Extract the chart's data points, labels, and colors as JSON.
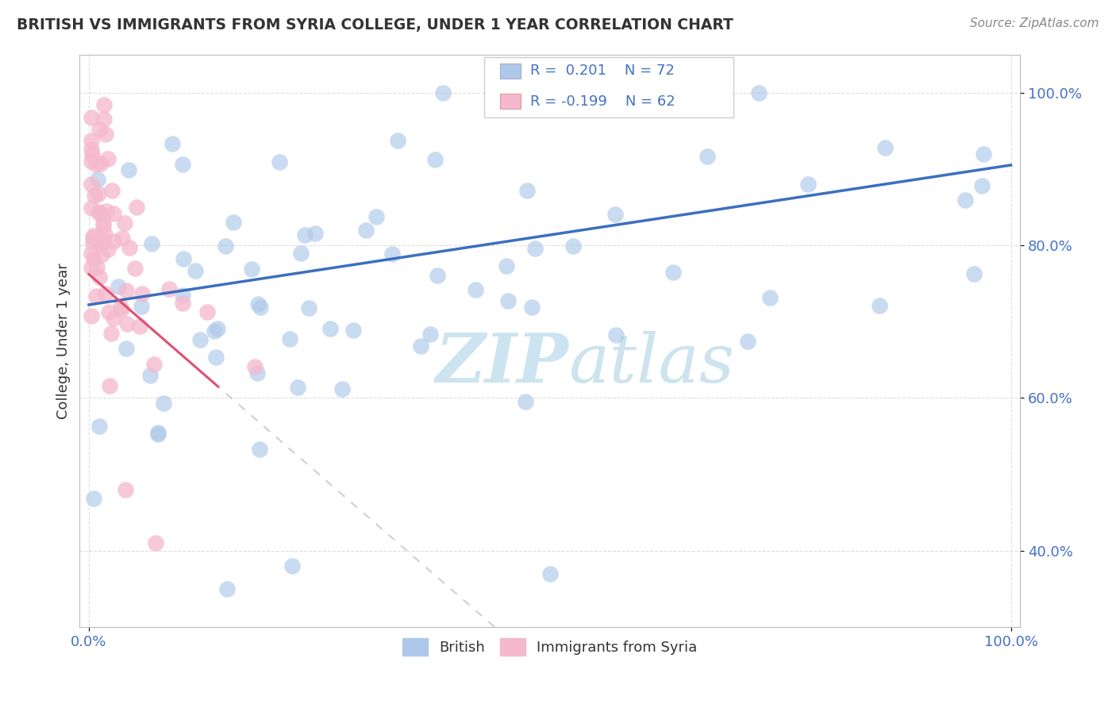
{
  "title": "BRITISH VS IMMIGRANTS FROM SYRIA COLLEGE, UNDER 1 YEAR CORRELATION CHART",
  "source": "Source: ZipAtlas.com",
  "ylabel": "College, Under 1 year",
  "legend_british": "British",
  "legend_syria": "Immigrants from Syria",
  "r_british": 0.201,
  "n_british": 72,
  "r_syria": -0.199,
  "n_syria": 62,
  "british_color": "#adc8e8",
  "british_line_color": "#3c6fbe",
  "syria_color": "#f5b8cc",
  "syria_line_color": "#e05070",
  "syria_ext_line_color": "#d0b0b8",
  "watermark_color": "#cce4f0",
  "ytick_vals": [
    0.4,
    0.6,
    0.8,
    1.0
  ],
  "ytick_labels": [
    "40.0%",
    "60.0%",
    "80.0%",
    "100.0%"
  ],
  "xlim": [
    -0.01,
    1.01
  ],
  "ylim": [
    0.3,
    1.05
  ]
}
